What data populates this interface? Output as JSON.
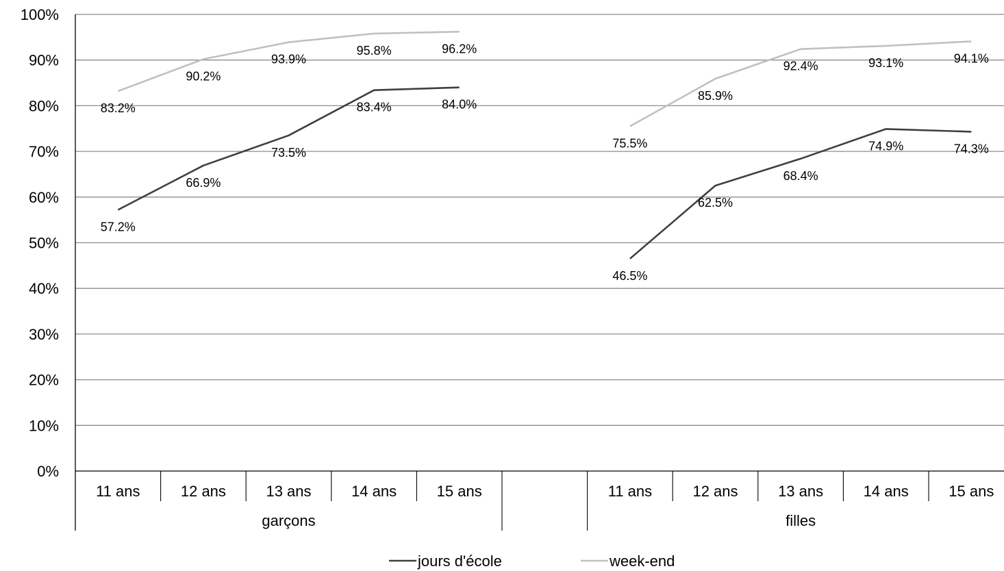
{
  "chart_data": {
    "type": "line",
    "ylim": [
      0,
      100
    ],
    "y_ticks": [
      "0%",
      "10%",
      "20%",
      "30%",
      "40%",
      "50%",
      "60%",
      "70%",
      "80%",
      "90%",
      "100%"
    ],
    "grid": true,
    "legend_position": "bottom",
    "groups": [
      {
        "label": "garçons",
        "categories": [
          "11 ans",
          "12 ans",
          "13 ans",
          "14 ans",
          "15 ans"
        ]
      },
      {
        "label": "filles",
        "categories": [
          "11 ans",
          "12 ans",
          "13 ans",
          "14 ans",
          "15 ans"
        ]
      }
    ],
    "series": [
      {
        "name": "jours d'école",
        "color": "#3f3f3f",
        "values": [
          [
            57.2,
            66.9,
            73.5,
            83.4,
            84.0
          ],
          [
            46.5,
            62.5,
            68.4,
            74.9,
            74.3
          ]
        ],
        "labels": [
          [
            "57.2%",
            "66.9%",
            "73.5%",
            "83.4%",
            "84.0%"
          ],
          [
            "46.5%",
            "62.5%",
            "68.4%",
            "74.9%",
            "74.3%"
          ]
        ]
      },
      {
        "name": "week-end",
        "color": "#c0c0c0",
        "values": [
          [
            83.2,
            90.2,
            93.9,
            95.8,
            96.2
          ],
          [
            75.5,
            85.9,
            92.4,
            93.1,
            94.1
          ]
        ],
        "labels": [
          [
            "83.2%",
            "90.2%",
            "93.9%",
            "95.8%",
            "96.2%"
          ],
          [
            "75.5%",
            "85.9%",
            "92.4%",
            "93.1%",
            "94.1%"
          ]
        ]
      }
    ]
  }
}
